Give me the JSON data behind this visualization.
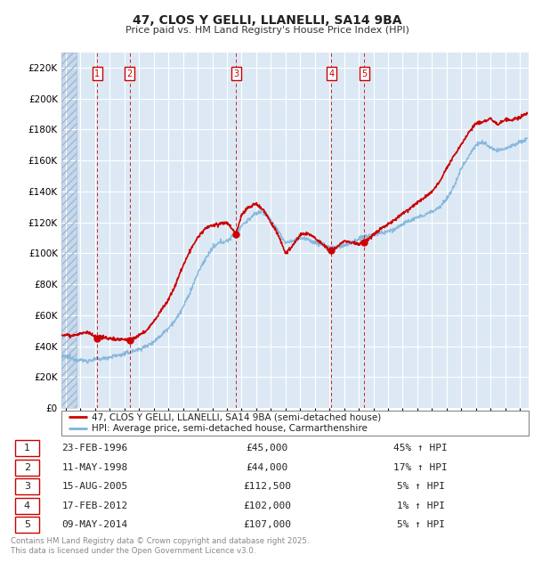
{
  "title": "47, CLOS Y GELLI, LLANELLI, SA14 9BA",
  "subtitle": "Price paid vs. HM Land Registry's House Price Index (HPI)",
  "ylim": [
    0,
    230000
  ],
  "yticks": [
    0,
    20000,
    40000,
    60000,
    80000,
    100000,
    120000,
    140000,
    160000,
    180000,
    200000,
    220000
  ],
  "xlim_start": 1993.7,
  "xlim_end": 2025.6,
  "bg_color": "#dce9f5",
  "hatch_region_end": 1994.75,
  "grid_color": "#ffffff",
  "legend_entries": [
    "47, CLOS Y GELLI, LLANELLI, SA14 9BA (semi-detached house)",
    "HPI: Average price, semi-detached house, Carmarthenshire"
  ],
  "legend_colors": [
    "#cc0000",
    "#7fb3d9"
  ],
  "transactions": [
    {
      "num": 1,
      "date": "23-FEB-1996",
      "price": 45000,
      "pct": "45%",
      "dir": "↑",
      "year": 1996.14
    },
    {
      "num": 2,
      "date": "11-MAY-1998",
      "price": 44000,
      "pct": "17%",
      "dir": "↑",
      "year": 1998.37
    },
    {
      "num": 3,
      "date": "15-AUG-2005",
      "price": 112500,
      "pct": "5%",
      "dir": "↑",
      "year": 2005.62
    },
    {
      "num": 4,
      "date": "17-FEB-2012",
      "price": 102000,
      "pct": "1%",
      "dir": "↑",
      "year": 2012.13
    },
    {
      "num": 5,
      "date": "09-MAY-2014",
      "price": 107000,
      "pct": "5%",
      "dir": "↑",
      "year": 2014.37
    }
  ],
  "footer": "Contains HM Land Registry data © Crown copyright and database right 2025.\nThis data is licensed under the Open Government Licence v3.0.",
  "hpi_color": "#7fb3d9",
  "price_color": "#cc0000",
  "sale_marker_color": "#cc0000",
  "hpi_anchors": [
    [
      1993.7,
      33000
    ],
    [
      1994.0,
      33500
    ],
    [
      1994.5,
      32000
    ],
    [
      1995.0,
      31000
    ],
    [
      1995.5,
      30500
    ],
    [
      1996.0,
      31500
    ],
    [
      1996.5,
      32000
    ],
    [
      1997.0,
      33000
    ],
    [
      1997.5,
      34000
    ],
    [
      1998.0,
      35000
    ],
    [
      1998.5,
      36500
    ],
    [
      1999.0,
      38000
    ],
    [
      1999.5,
      40000
    ],
    [
      2000.0,
      43000
    ],
    [
      2000.5,
      47000
    ],
    [
      2001.0,
      52000
    ],
    [
      2001.5,
      57000
    ],
    [
      2002.0,
      65000
    ],
    [
      2002.5,
      75000
    ],
    [
      2003.0,
      87000
    ],
    [
      2003.5,
      96000
    ],
    [
      2004.0,
      103000
    ],
    [
      2004.5,
      107000
    ],
    [
      2005.0,
      108000
    ],
    [
      2005.5,
      112000
    ],
    [
      2005.62,
      112500
    ],
    [
      2006.0,
      118000
    ],
    [
      2006.5,
      122000
    ],
    [
      2007.0,
      126000
    ],
    [
      2007.5,
      127000
    ],
    [
      2008.0,
      122000
    ],
    [
      2008.5,
      114000
    ],
    [
      2009.0,
      107000
    ],
    [
      2009.5,
      108000
    ],
    [
      2010.0,
      110000
    ],
    [
      2010.5,
      109000
    ],
    [
      2011.0,
      107000
    ],
    [
      2011.5,
      106000
    ],
    [
      2012.0,
      104000
    ],
    [
      2012.5,
      104000
    ],
    [
      2013.0,
      105000
    ],
    [
      2013.5,
      107000
    ],
    [
      2014.0,
      109000
    ],
    [
      2014.5,
      111000
    ],
    [
      2015.0,
      112000
    ],
    [
      2015.5,
      113000
    ],
    [
      2016.0,
      114000
    ],
    [
      2016.5,
      116000
    ],
    [
      2017.0,
      119000
    ],
    [
      2017.5,
      121000
    ],
    [
      2018.0,
      123000
    ],
    [
      2018.5,
      125000
    ],
    [
      2019.0,
      127000
    ],
    [
      2019.5,
      130000
    ],
    [
      2020.0,
      135000
    ],
    [
      2020.5,
      143000
    ],
    [
      2021.0,
      155000
    ],
    [
      2021.5,
      163000
    ],
    [
      2022.0,
      170000
    ],
    [
      2022.5,
      172000
    ],
    [
      2023.0,
      168000
    ],
    [
      2023.5,
      166000
    ],
    [
      2024.0,
      168000
    ],
    [
      2024.5,
      170000
    ],
    [
      2025.0,
      172000
    ],
    [
      2025.5,
      174000
    ]
  ],
  "price_anchors": [
    [
      1993.7,
      47000
    ],
    [
      1994.0,
      47500
    ],
    [
      1994.5,
      47000
    ],
    [
      1995.0,
      48000
    ],
    [
      1995.5,
      49000
    ],
    [
      1996.0,
      46000
    ],
    [
      1996.14,
      45000
    ],
    [
      1996.5,
      46000
    ],
    [
      1997.0,
      45000
    ],
    [
      1997.5,
      44500
    ],
    [
      1998.0,
      44500
    ],
    [
      1998.37,
      44000
    ],
    [
      1998.5,
      44500
    ],
    [
      1999.0,
      47000
    ],
    [
      1999.5,
      50000
    ],
    [
      2000.0,
      56000
    ],
    [
      2000.5,
      63000
    ],
    [
      2001.0,
      70000
    ],
    [
      2001.5,
      80000
    ],
    [
      2002.0,
      92000
    ],
    [
      2002.5,
      102000
    ],
    [
      2003.0,
      110000
    ],
    [
      2003.5,
      116000
    ],
    [
      2004.0,
      118000
    ],
    [
      2004.5,
      119000
    ],
    [
      2005.0,
      120000
    ],
    [
      2005.5,
      114000
    ],
    [
      2005.62,
      112500
    ],
    [
      2006.0,
      125000
    ],
    [
      2006.5,
      130000
    ],
    [
      2007.0,
      132000
    ],
    [
      2007.5,
      128000
    ],
    [
      2008.0,
      120000
    ],
    [
      2008.5,
      112000
    ],
    [
      2009.0,
      100000
    ],
    [
      2009.5,
      105000
    ],
    [
      2010.0,
      112000
    ],
    [
      2010.5,
      113000
    ],
    [
      2011.0,
      110000
    ],
    [
      2011.5,
      106000
    ],
    [
      2012.0,
      102000
    ],
    [
      2012.13,
      102000
    ],
    [
      2012.5,
      104000
    ],
    [
      2013.0,
      108000
    ],
    [
      2013.5,
      107000
    ],
    [
      2014.0,
      106000
    ],
    [
      2014.37,
      107000
    ],
    [
      2014.5,
      108000
    ],
    [
      2015.0,
      112000
    ],
    [
      2015.5,
      116000
    ],
    [
      2016.0,
      119000
    ],
    [
      2016.5,
      122000
    ],
    [
      2017.0,
      126000
    ],
    [
      2017.5,
      129000
    ],
    [
      2018.0,
      133000
    ],
    [
      2018.5,
      136000
    ],
    [
      2019.0,
      140000
    ],
    [
      2019.5,
      146000
    ],
    [
      2020.0,
      155000
    ],
    [
      2020.5,
      163000
    ],
    [
      2021.0,
      170000
    ],
    [
      2021.5,
      178000
    ],
    [
      2022.0,
      184000
    ],
    [
      2022.5,
      185000
    ],
    [
      2023.0,
      187000
    ],
    [
      2023.5,
      183000
    ],
    [
      2024.0,
      187000
    ],
    [
      2024.5,
      186000
    ],
    [
      2025.0,
      188000
    ],
    [
      2025.5,
      190000
    ]
  ]
}
